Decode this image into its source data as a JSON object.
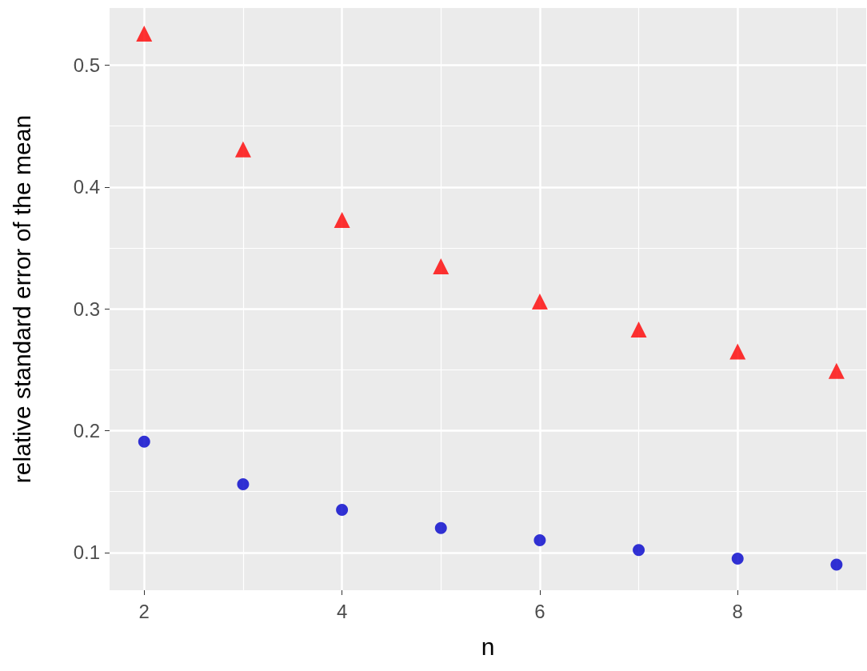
{
  "chart_data": {
    "type": "scatter",
    "xlabel": "n",
    "ylabel": "relative standard error of the mean",
    "x": [
      2,
      3,
      4,
      5,
      6,
      7,
      8,
      9
    ],
    "series": [
      {
        "color": "#ff0000",
        "marker": "triangle",
        "values": [
          0.526,
          0.431,
          0.373,
          0.335,
          0.306,
          0.283,
          0.265,
          0.249
        ]
      },
      {
        "color": "#0000cc",
        "marker": "circle",
        "values": [
          0.191,
          0.156,
          0.135,
          0.12,
          0.11,
          0.102,
          0.095,
          0.09
        ]
      }
    ],
    "xlim": [
      1.65,
      9.3
    ],
    "xticks": [
      2,
      4,
      6,
      8
    ],
    "ylim": [
      0.069,
      0.547
    ],
    "yticks": [
      0.1,
      0.2,
      0.3,
      0.4,
      0.5
    ],
    "grid": true
  }
}
